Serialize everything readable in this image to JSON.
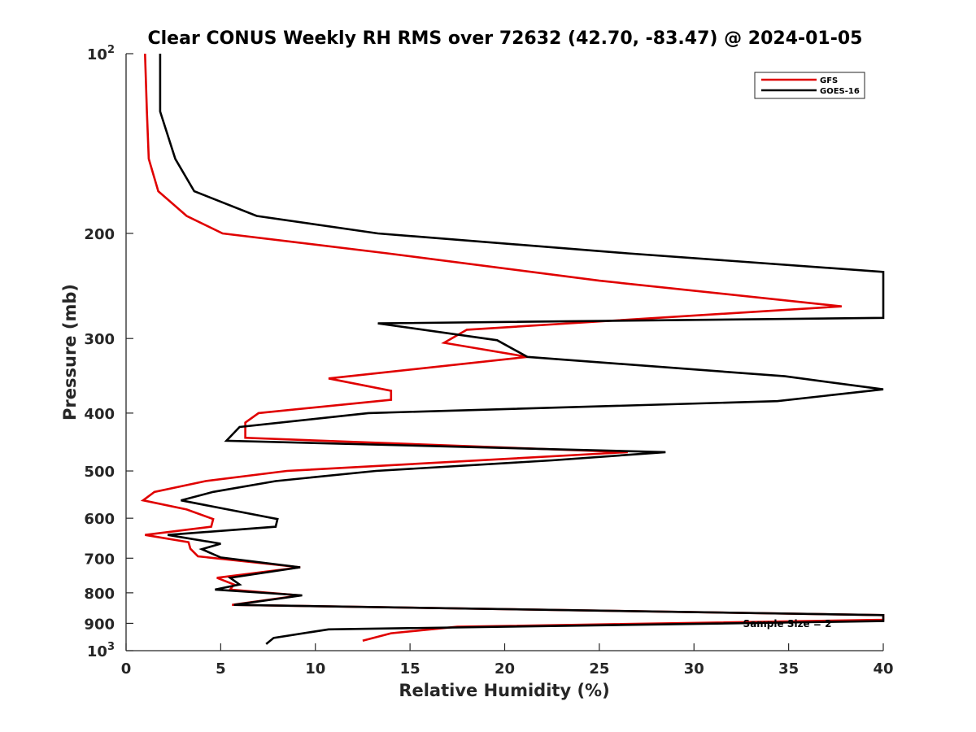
{
  "chart_data": {
    "type": "line",
    "title": "Clear CONUS Weekly RH RMS over 72632 (42.70, -83.47) @ 2024-01-05",
    "xlabel": "Relative Humidity (%)",
    "ylabel": "Pressure (mb)",
    "xlim": [
      0,
      40
    ],
    "ylim": [
      100,
      1000
    ],
    "yscale": "log",
    "y_reversed": true,
    "grid": false,
    "legend_position": "top-right",
    "x_ticks": [
      "0",
      "5",
      "10",
      "15",
      "20",
      "25",
      "30",
      "35",
      "40"
    ],
    "x_tick_values": [
      0,
      5,
      10,
      15,
      20,
      25,
      30,
      35,
      40
    ],
    "y_ticks": [
      {
        "value": 100,
        "base": "10",
        "exp": "2"
      },
      {
        "value": 200,
        "label": "200"
      },
      {
        "value": 300,
        "label": "300"
      },
      {
        "value": 400,
        "label": "400"
      },
      {
        "value": 500,
        "label": "500"
      },
      {
        "value": 600,
        "label": "600"
      },
      {
        "value": 700,
        "label": "700"
      },
      {
        "value": 800,
        "label": "800"
      },
      {
        "value": 900,
        "label": "900"
      },
      {
        "value": 1000,
        "base": "10",
        "exp": "3"
      }
    ],
    "annotation": "Sample Size = 2",
    "series": [
      {
        "name": "GFS",
        "color": "#e00000",
        "points": [
          [
            1.0,
            100
          ],
          [
            1.1,
            125
          ],
          [
            1.2,
            150
          ],
          [
            1.7,
            170
          ],
          [
            3.2,
            187
          ],
          [
            5.1,
            200
          ],
          [
            13.8,
            216
          ],
          [
            25.0,
            240
          ],
          [
            37.8,
            265
          ],
          [
            18.0,
            290
          ],
          [
            16.8,
            305
          ],
          [
            21.2,
            322
          ],
          [
            10.7,
            350
          ],
          [
            14.0,
            367
          ],
          [
            14.0,
            380
          ],
          [
            7.0,
            400
          ],
          [
            6.3,
            415
          ],
          [
            6.3,
            440
          ],
          [
            26.5,
            465
          ],
          [
            8.5,
            500
          ],
          [
            4.2,
            520
          ],
          [
            1.5,
            542
          ],
          [
            0.9,
            560
          ],
          [
            3.2,
            580
          ],
          [
            4.6,
            602
          ],
          [
            4.5,
            620
          ],
          [
            1.0,
            640
          ],
          [
            3.3,
            658
          ],
          [
            3.4,
            675
          ],
          [
            3.8,
            695
          ],
          [
            9.2,
            725
          ],
          [
            4.8,
            755
          ],
          [
            5.7,
            775
          ],
          [
            5.5,
            790
          ],
          [
            9.2,
            808
          ],
          [
            5.6,
            838
          ],
          [
            40,
            872
          ],
          [
            40,
            888
          ],
          [
            17.5,
            912
          ],
          [
            14.0,
            935
          ],
          [
            12.5,
            962
          ]
        ]
      },
      {
        "name": "GOES-16",
        "color": "#000000",
        "points": [
          [
            1.8,
            100
          ],
          [
            1.8,
            125
          ],
          [
            2.6,
            150
          ],
          [
            3.6,
            170
          ],
          [
            6.9,
            187
          ],
          [
            13.3,
            200
          ],
          [
            26.5,
            216
          ],
          [
            40,
            232
          ],
          [
            40,
            277
          ],
          [
            13.3,
            283
          ],
          [
            19.6,
            302
          ],
          [
            21.2,
            322
          ],
          [
            34.8,
            347
          ],
          [
            40,
            365
          ],
          [
            34.4,
            382
          ],
          [
            12.8,
            400
          ],
          [
            6.0,
            422
          ],
          [
            5.3,
            445
          ],
          [
            28.5,
            465
          ],
          [
            22.5,
            480
          ],
          [
            13.2,
            500
          ],
          [
            7.9,
            520
          ],
          [
            4.6,
            542
          ],
          [
            2.9,
            560
          ],
          [
            8.0,
            602
          ],
          [
            7.9,
            620
          ],
          [
            2.2,
            640
          ],
          [
            5.0,
            662
          ],
          [
            4.0,
            676
          ],
          [
            5.0,
            698
          ],
          [
            9.2,
            725
          ],
          [
            5.5,
            755
          ],
          [
            6.0,
            775
          ],
          [
            4.7,
            790
          ],
          [
            9.3,
            808
          ],
          [
            5.7,
            838
          ],
          [
            40,
            872
          ],
          [
            40,
            892
          ],
          [
            10.7,
            921
          ],
          [
            7.8,
            952
          ],
          [
            7.4,
            975
          ]
        ]
      }
    ]
  }
}
